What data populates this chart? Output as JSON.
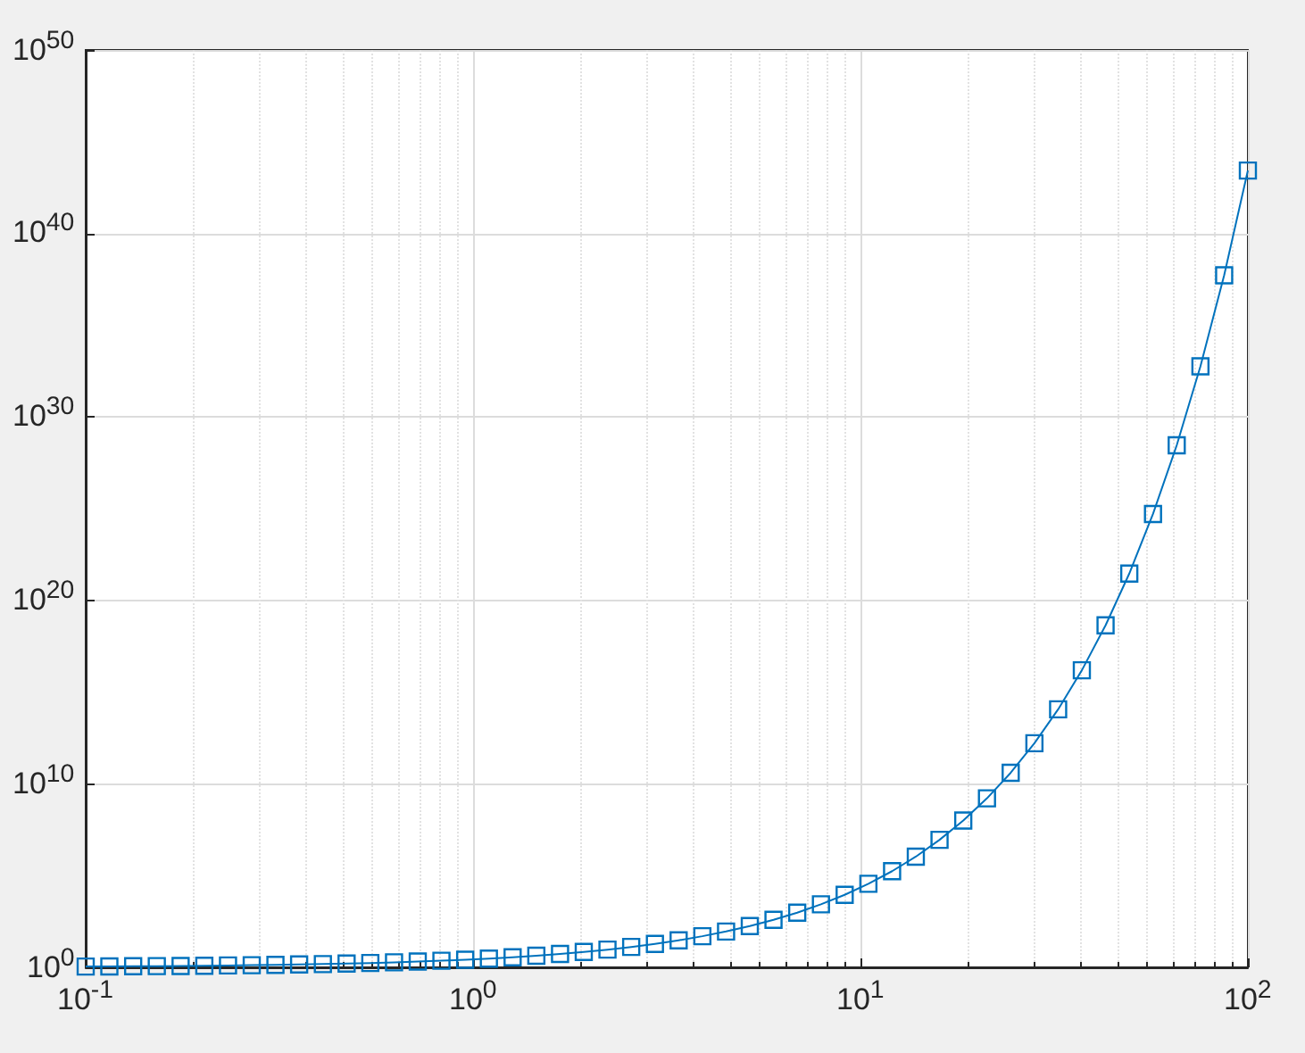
{
  "chart_data": {
    "type": "line",
    "log": "xy",
    "grid": true,
    "marker": "square",
    "line_style": "solid",
    "xlim": [
      0.1,
      100
    ],
    "ylim": [
      1,
      1e+50
    ],
    "xticks": [
      {
        "value": 0.1,
        "label": "10$^{-1}$"
      },
      {
        "value": 1,
        "label": "10$^{0}$"
      },
      {
        "value": 10,
        "label": "10$^{1}$"
      },
      {
        "value": 100,
        "label": "10$^{2}$"
      }
    ],
    "yticks": [
      {
        "value": 1,
        "label": "10$^{0}$"
      },
      {
        "value": 10000000000.0,
        "label": "10$^{10}$"
      },
      {
        "value": 1e+20,
        "label": "10$^{20}$"
      },
      {
        "value": 1e+30,
        "label": "10$^{30}$"
      },
      {
        "value": 1e+40,
        "label": "10$^{40}$"
      },
      {
        "value": 1e+50,
        "label": "10$^{50}$"
      }
    ],
    "x": [
      0.1,
      0.1151,
      0.1326,
      0.1526,
      0.1758,
      0.2024,
      0.233,
      0.2683,
      0.3089,
      0.3556,
      0.4095,
      0.4715,
      0.5429,
      0.6251,
      0.7197,
      0.8286,
      0.9541,
      1.0985,
      1.2649,
      1.4563,
      1.6768,
      1.9307,
      2.223,
      2.5595,
      2.9471,
      3.3932,
      3.9069,
      4.4984,
      5.1795,
      5.9636,
      6.8665,
      7.906,
      9.103,
      10.481,
      12.068,
      13.895,
      15.999,
      18.421,
      21.21,
      24.421,
      28.118,
      32.375,
      37.276,
      42.919,
      49.417,
      56.899,
      65.513,
      75.431,
      86.851,
      100
    ],
    "series": [
      {
        "color": "#0072bd",
        "values": [
          1.105,
          1.122,
          1.142,
          1.165,
          1.192,
          1.224,
          1.262,
          1.308,
          1.362,
          1.427,
          1.506,
          1.602,
          1.721,
          1.869,
          2.054,
          2.29,
          2.596,
          3.0,
          3.543,
          4.29,
          5.349,
          6.894,
          9.236,
          12.93,
          19.05,
          29.77,
          49.75,
          89.87,
          177.6,
          389.2,
          960,
          2715,
          8980,
          35600.0,
          174000.0,
          1080000.0,
          8880000.0,
          100000000.0,
          1630000000.0,
          40300000000.0,
          1630000000000.0,
          115000000000000.0,
          1.55e+16,
          4.37e+18,
          2.89e+21,
          5.14e+24,
          2.83e+28,
          5.74e+32,
          5.24e+37,
          2.69e+43
        ]
      }
    ]
  }
}
